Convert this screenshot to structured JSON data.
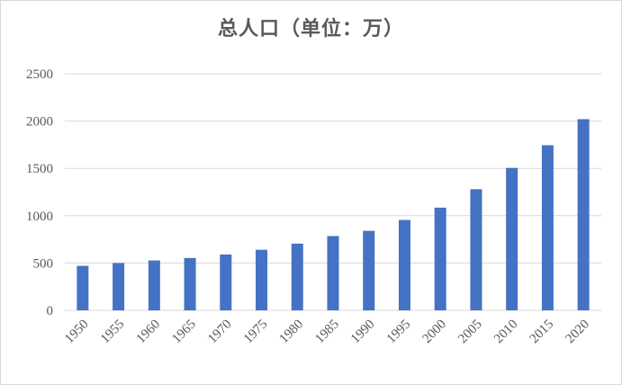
{
  "chart_data": {
    "type": "bar",
    "title": "总人口（单位：万）",
    "xlabel": "",
    "ylabel": "",
    "categories": [
      "1950",
      "1955",
      "1960",
      "1965",
      "1970",
      "1975",
      "1980",
      "1985",
      "1990",
      "1995",
      "2000",
      "2005",
      "2010",
      "2015",
      "2020"
    ],
    "values": [
      470,
      500,
      527,
      553,
      590,
      640,
      705,
      785,
      840,
      955,
      1085,
      1280,
      1505,
      1745,
      2020
    ],
    "ylim": [
      0,
      2500
    ],
    "yticks": [
      "0",
      "500",
      "1000",
      "1500",
      "2000",
      "2500"
    ],
    "grid": true,
    "legend": "none",
    "bar_color": "#4472C4",
    "grid_color": "#d9d9d9"
  }
}
